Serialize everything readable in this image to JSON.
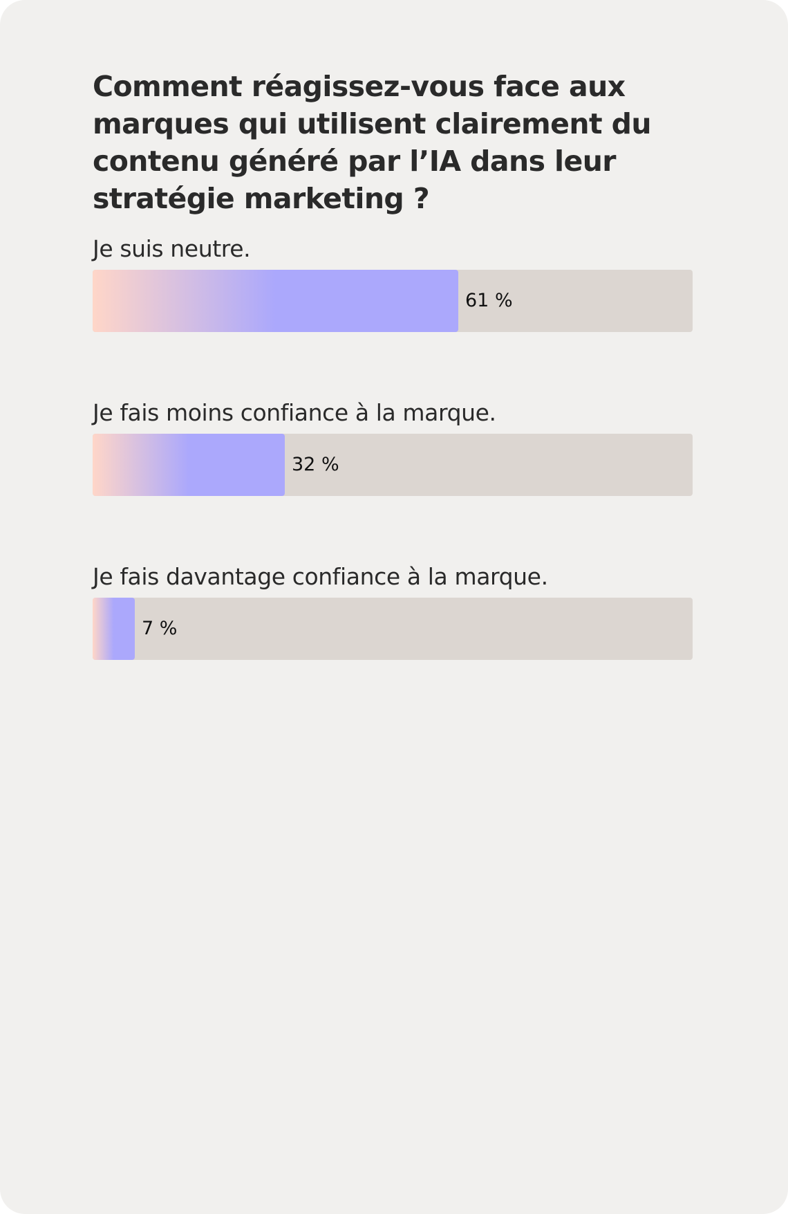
{
  "chart_data": {
    "type": "bar",
    "orientation": "horizontal",
    "title": "Comment réagissez-vous face aux marques qui utilisent clairement du contenu généré par l’IA dans leur stratégie marketing ?",
    "categories": [
      "Je suis neutre.",
      "Je fais moins confiance à la marque.",
      "Je fais davantage confiance à la marque."
    ],
    "values": [
      61,
      32,
      7
    ],
    "value_labels": [
      "61 %",
      "32 %",
      "7 %"
    ],
    "unit": "%",
    "xlim": [
      0,
      100
    ],
    "grid": false,
    "legend": "none",
    "colors": {
      "card_background": "#f1f0ee",
      "track": "#dcd6d1",
      "fill_start": "#ffd6c8",
      "fill_end": "#aba8fc",
      "text": "#2a2a2a"
    }
  }
}
